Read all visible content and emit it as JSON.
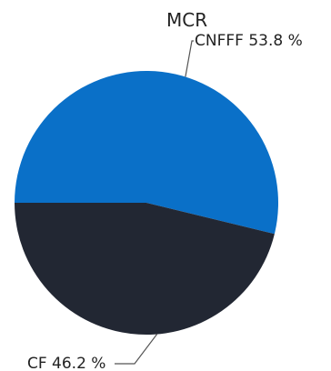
{
  "chart_data": {
    "type": "pie",
    "title": "MCR",
    "slices": [
      {
        "label": "CNFFF",
        "value": 53.8,
        "display": "CNFFF 53.8 %",
        "color": "#0a70c8"
      },
      {
        "label": "CF",
        "value": 46.2,
        "display": "CF 46.2 %",
        "color": "#222733"
      }
    ]
  }
}
